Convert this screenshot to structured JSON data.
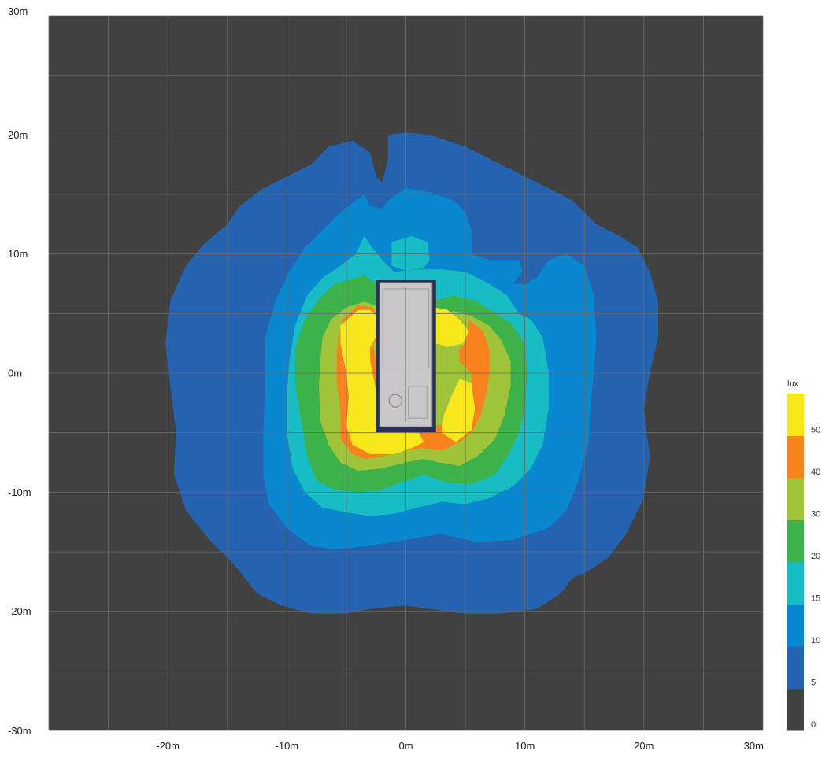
{
  "chart_data": {
    "type": "heatmap",
    "title": "",
    "xlabel": "",
    "ylabel": "",
    "xlim": [
      -30,
      30
    ],
    "ylim": [
      -30,
      30
    ],
    "grid": true,
    "grid_step": 5,
    "background_color": "#414141",
    "grid_color": "#6a6a6a",
    "x_ticks": [
      {
        "value": -20,
        "label": "-20m"
      },
      {
        "value": -10,
        "label": "-10m"
      },
      {
        "value": 0,
        "label": "0m"
      },
      {
        "value": 10,
        "label": "10m"
      },
      {
        "value": 20,
        "label": "20m"
      },
      {
        "value": 30,
        "label": "30m"
      }
    ],
    "y_ticks": [
      {
        "value": 30,
        "label": "30m"
      },
      {
        "value": 20,
        "label": "20m"
      },
      {
        "value": 10,
        "label": "10m"
      },
      {
        "value": 0,
        "label": "0m"
      },
      {
        "value": -10,
        "label": "-10m"
      },
      {
        "value": -20,
        "label": "-20m"
      },
      {
        "value": -30,
        "label": "-30m"
      }
    ],
    "legend": {
      "title": "lux",
      "placement": "right",
      "bands": [
        {
          "min": 0,
          "color": "#414141"
        },
        {
          "min": 5,
          "color": "#2563b0"
        },
        {
          "min": 10,
          "color": "#0a88cf"
        },
        {
          "min": 15,
          "color": "#17bcc4"
        },
        {
          "min": 20,
          "color": "#3db24a"
        },
        {
          "min": 30,
          "color": "#9fc43a"
        },
        {
          "min": 40,
          "color": "#f7821e"
        },
        {
          "min": 50,
          "color": "#f7e81d"
        }
      ],
      "labels": [
        "0",
        "5",
        "10",
        "15",
        "20",
        "30",
        "40",
        "50"
      ]
    },
    "contours": [
      {
        "level": 5,
        "color": "#2563b0",
        "points": [
          [
            -4.5,
            19.5
          ],
          [
            -3,
            18.5
          ],
          [
            -2.5,
            16.5
          ],
          [
            -2,
            16
          ],
          [
            -1.5,
            18
          ],
          [
            -1.5,
            20
          ],
          [
            0,
            20.2
          ],
          [
            2,
            20
          ],
          [
            5,
            19
          ],
          [
            9,
            17
          ],
          [
            12,
            15.5
          ],
          [
            14,
            14.5
          ],
          [
            16,
            12.5
          ],
          [
            18,
            11.5
          ],
          [
            19.5,
            10.5
          ],
          [
            20.5,
            8.5
          ],
          [
            21.2,
            6
          ],
          [
            21.2,
            3
          ],
          [
            20.5,
            0
          ],
          [
            20,
            -3
          ],
          [
            20.5,
            -7
          ],
          [
            20,
            -10.5
          ],
          [
            18.5,
            -13.5
          ],
          [
            17,
            -15.5
          ],
          [
            15,
            -16.8
          ],
          [
            14,
            -17.2
          ],
          [
            13,
            -18.5
          ],
          [
            11,
            -19.8
          ],
          [
            8,
            -20.2
          ],
          [
            5,
            -20.2
          ],
          [
            2,
            -19.8
          ],
          [
            0,
            -19.5
          ],
          [
            -3,
            -19.8
          ],
          [
            -5,
            -20.2
          ],
          [
            -8,
            -20.2
          ],
          [
            -10.5,
            -19.5
          ],
          [
            -12.5,
            -18.5
          ],
          [
            -14.5,
            -16
          ],
          [
            -16.5,
            -14
          ],
          [
            -18.5,
            -11.5
          ],
          [
            -19.5,
            -8.5
          ],
          [
            -19.3,
            -5
          ],
          [
            -19.8,
            -1
          ],
          [
            -20.2,
            2.5
          ],
          [
            -19.8,
            6
          ],
          [
            -18.5,
            9
          ],
          [
            -17,
            10.8
          ],
          [
            -15,
            12.5
          ],
          [
            -14,
            14
          ],
          [
            -12,
            15.5
          ],
          [
            -10,
            16.5
          ],
          [
            -8,
            17.5
          ],
          [
            -6.5,
            19
          ]
        ]
      },
      {
        "level": 10,
        "color": "#0a88cf",
        "points": [
          [
            -3.5,
            15
          ],
          [
            -3,
            14
          ],
          [
            -2,
            13.8
          ],
          [
            -1.5,
            14.5
          ],
          [
            0,
            15.5
          ],
          [
            2,
            15.2
          ],
          [
            4,
            14.5
          ],
          [
            5,
            13.5
          ],
          [
            5.5,
            12
          ],
          [
            5.5,
            10
          ],
          [
            7,
            9.5
          ],
          [
            9.5,
            9.5
          ],
          [
            9.8,
            8.5
          ],
          [
            9,
            7.5
          ],
          [
            10,
            7.5
          ],
          [
            11,
            8
          ],
          [
            12,
            9.5
          ],
          [
            13.5,
            10
          ],
          [
            15,
            9
          ],
          [
            15.8,
            6.5
          ],
          [
            16,
            3
          ],
          [
            15.8,
            0
          ],
          [
            15.5,
            -3
          ],
          [
            15.3,
            -6
          ],
          [
            14.5,
            -9
          ],
          [
            13.5,
            -11.5
          ],
          [
            12,
            -13
          ],
          [
            9,
            -14
          ],
          [
            6,
            -14.2
          ],
          [
            3,
            -13.5
          ],
          [
            0,
            -14
          ],
          [
            -3,
            -14.5
          ],
          [
            -6,
            -14.8
          ],
          [
            -8,
            -14.5
          ],
          [
            -10,
            -13
          ],
          [
            -11.5,
            -11
          ],
          [
            -12,
            -8.5
          ],
          [
            -12,
            -5
          ],
          [
            -11.8,
            -1
          ],
          [
            -11.8,
            3
          ],
          [
            -11,
            6
          ],
          [
            -9.8,
            8.5
          ],
          [
            -8.5,
            10.5
          ],
          [
            -7,
            12
          ],
          [
            -5.5,
            13.5
          ]
        ]
      },
      {
        "level": 15,
        "color": "#17bcc4",
        "points": [
          [
            -3.5,
            11.5
          ],
          [
            -2.8,
            10.5
          ],
          [
            -2,
            9.5
          ],
          [
            -1,
            8.5
          ],
          [
            1,
            8.7
          ],
          [
            3,
            8.7
          ],
          [
            5,
            8.5
          ],
          [
            7,
            7.5
          ],
          [
            8.5,
            6.5
          ],
          [
            9.5,
            5
          ],
          [
            10.5,
            4.5
          ],
          [
            11.5,
            3
          ],
          [
            12,
            0
          ],
          [
            12,
            -3
          ],
          [
            11.5,
            -6
          ],
          [
            10.5,
            -8
          ],
          [
            9,
            -9.5
          ],
          [
            7,
            -10.5
          ],
          [
            5,
            -11
          ],
          [
            3,
            -10.8
          ],
          [
            1,
            -11.3
          ],
          [
            -1,
            -11.8
          ],
          [
            -3,
            -12
          ],
          [
            -5,
            -11.7
          ],
          [
            -7,
            -11.3
          ],
          [
            -8.5,
            -10
          ],
          [
            -9.5,
            -8
          ],
          [
            -10,
            -5
          ],
          [
            -10,
            -2
          ],
          [
            -9.8,
            1
          ],
          [
            -9.3,
            4
          ],
          [
            -8.3,
            6.5
          ],
          [
            -7,
            8
          ],
          [
            -5.5,
            9
          ],
          [
            -4.2,
            10
          ]
        ]
      },
      {
        "level": 20,
        "color": "#3db24a",
        "points": [
          [
            -3.5,
            8.2
          ],
          [
            -2.5,
            7.5
          ],
          [
            -1.8,
            6.2
          ],
          [
            -1,
            5.5
          ],
          [
            1,
            5.5
          ],
          [
            2.8,
            6.2
          ],
          [
            4,
            6.5
          ],
          [
            6,
            6
          ],
          [
            7.5,
            5
          ],
          [
            8.8,
            4.2
          ],
          [
            10,
            2.5
          ],
          [
            10.2,
            0
          ],
          [
            10,
            -3
          ],
          [
            9.5,
            -5
          ],
          [
            8.5,
            -7
          ],
          [
            7.5,
            -8.5
          ],
          [
            5.5,
            -9.3
          ],
          [
            3.5,
            -9.2
          ],
          [
            1.5,
            -8.5
          ],
          [
            0,
            -9
          ],
          [
            -2,
            -9.8
          ],
          [
            -4,
            -10
          ],
          [
            -6,
            -9.8
          ],
          [
            -7.5,
            -9
          ],
          [
            -8.3,
            -7
          ],
          [
            -8.8,
            -4
          ],
          [
            -9.3,
            -1
          ],
          [
            -9.3,
            2
          ],
          [
            -8.5,
            4.5
          ],
          [
            -7.5,
            6
          ],
          [
            -6,
            7.5
          ]
        ]
      },
      {
        "level": 30,
        "color": "#9fc43a",
        "points": [
          [
            -3.5,
            6
          ],
          [
            -2,
            5.5
          ],
          [
            -1.5,
            4.5
          ],
          [
            -0.5,
            3.5
          ],
          [
            1,
            3.5
          ],
          [
            2.5,
            4.5
          ],
          [
            4,
            5.2
          ],
          [
            5.5,
            4.8
          ],
          [
            7,
            4
          ],
          [
            8,
            2.8
          ],
          [
            8.8,
            1
          ],
          [
            8.8,
            -1
          ],
          [
            8.3,
            -3.5
          ],
          [
            7.5,
            -5.5
          ],
          [
            6,
            -7
          ],
          [
            4.5,
            -7.8
          ],
          [
            2.8,
            -7.5
          ],
          [
            1.5,
            -7.2
          ],
          [
            0,
            -7.5
          ],
          [
            -2,
            -8
          ],
          [
            -4,
            -8.2
          ],
          [
            -5.5,
            -7.5
          ],
          [
            -6.5,
            -6
          ],
          [
            -7.2,
            -4
          ],
          [
            -7.3,
            -1
          ],
          [
            -7.2,
            1
          ],
          [
            -7,
            3
          ],
          [
            -6.3,
            4.5
          ],
          [
            -5,
            5.5
          ]
        ]
      },
      {
        "level": 40,
        "color": "#f7821e",
        "points": [
          [
            -4,
            5.7
          ],
          [
            -2.8,
            5.5
          ],
          [
            -2,
            4
          ],
          [
            -1.8,
            3
          ],
          [
            -2.8,
            2.5
          ],
          [
            -2.5,
            1
          ],
          [
            -1.5,
            0
          ],
          [
            -1.5,
            -3
          ],
          [
            0,
            -4.5
          ],
          [
            2,
            -4.5
          ],
          [
            4.5,
            -4
          ],
          [
            5.5,
            -1.5
          ],
          [
            5.5,
            0
          ],
          [
            4.5,
            1
          ],
          [
            4.5,
            2
          ],
          [
            5,
            2.5
          ],
          [
            5.3,
            4.5
          ],
          [
            6.5,
            3.5
          ],
          [
            7,
            2
          ],
          [
            7,
            0
          ],
          [
            6.8,
            -1.5
          ],
          [
            6.3,
            -3.5
          ],
          [
            5.5,
            -5
          ],
          [
            4.5,
            -5.8
          ],
          [
            3,
            -6.5
          ],
          [
            1.5,
            -6.3
          ],
          [
            0,
            -6.5
          ],
          [
            -2,
            -7
          ],
          [
            -3.5,
            -7.2
          ],
          [
            -4.5,
            -6.8
          ],
          [
            -5.5,
            -5.5
          ],
          [
            -5.5,
            -3
          ],
          [
            -5.8,
            -1
          ],
          [
            -5.8,
            1.5
          ],
          [
            -5.7,
            3
          ],
          [
            -5.3,
            4.5
          ]
        ]
      },
      {
        "level": 50,
        "color": "#f7e81d",
        "points": [
          [
            -4,
            5.3
          ],
          [
            -3,
            5.3
          ],
          [
            -2.2,
            4.5
          ],
          [
            -2.2,
            3.5
          ],
          [
            -3,
            2.2
          ],
          [
            -3,
            1
          ],
          [
            -2.8,
            0
          ],
          [
            -2.5,
            -1.5
          ],
          [
            -1.5,
            -2.5
          ],
          [
            0,
            -3
          ],
          [
            1,
            -3.5
          ],
          [
            1,
            -4.8
          ],
          [
            1.5,
            -5.8
          ],
          [
            0.5,
            -6.3
          ],
          [
            -1,
            -6.8
          ],
          [
            -3,
            -6.8
          ],
          [
            -4.5,
            -6
          ],
          [
            -5,
            -4.5
          ],
          [
            -4.8,
            -2
          ],
          [
            -5,
            0
          ],
          [
            -5.5,
            2.5
          ],
          [
            -5.5,
            4
          ]
        ]
      },
      {
        "level": 50,
        "color": "#f7e81d",
        "points": [
          [
            2.5,
            5.5
          ],
          [
            3.5,
            5.3
          ],
          [
            4.5,
            4.5
          ],
          [
            5.3,
            3.5
          ],
          [
            4.8,
            2.5
          ],
          [
            3.5,
            2.2
          ],
          [
            2.5,
            2.5
          ],
          [
            2.2,
            3.5
          ],
          [
            2.2,
            4.5
          ]
        ]
      },
      {
        "level": 50,
        "color": "#f7e81d",
        "points": [
          [
            5.5,
            -0.8
          ],
          [
            4.5,
            -0.5
          ],
          [
            4,
            -1.5
          ],
          [
            3.2,
            -3.5
          ],
          [
            3,
            -5
          ],
          [
            4.2,
            -5.8
          ],
          [
            5.5,
            -4.8
          ],
          [
            5.8,
            -3
          ]
        ]
      },
      {
        "level": 15,
        "color": "#17bcc4",
        "points": [
          [
            -1.2,
            11
          ],
          [
            0.5,
            11.5
          ],
          [
            1.8,
            11
          ],
          [
            2,
            9.5
          ],
          [
            1.5,
            8.8
          ],
          [
            0,
            8.6
          ],
          [
            -1.2,
            9
          ]
        ]
      }
    ],
    "luminaire": {
      "x": [
        -2.2,
        2.2
      ],
      "y": [
        -4.5,
        7.6
      ],
      "color": "#c8c8c8"
    }
  }
}
